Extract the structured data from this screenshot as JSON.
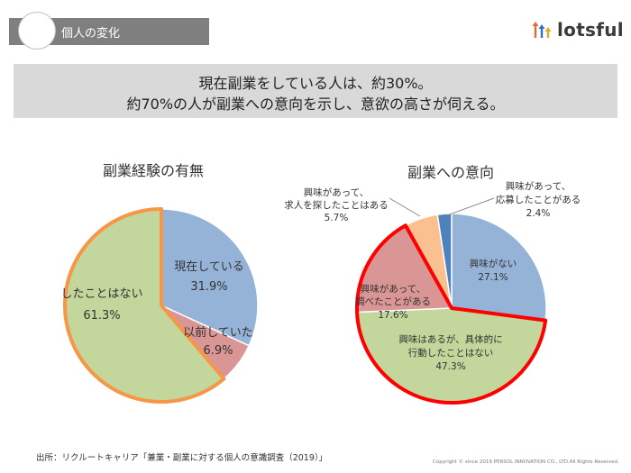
{
  "header": {
    "title": "個人の変化"
  },
  "logo": {
    "text": "lotsful",
    "arrow_colors": [
      "#e86b2a",
      "#2e6fd0",
      "#e8a52a"
    ]
  },
  "banner": {
    "line1": "現在副業をしている人は、約30%。",
    "line2": "約70%の人が副業への意向を示し、意欲の高さが伺える。"
  },
  "chart_data": [
    {
      "type": "pie",
      "title": "副業経験の有無",
      "slices": [
        {
          "label": "現在している",
          "value": 31.9,
          "value_label": "31.9%",
          "color": "#95b3d7"
        },
        {
          "label": "以前していた",
          "value": 6.9,
          "value_label": "6.9%",
          "color": "#da9694"
        },
        {
          "label": "したことはない",
          "value": 61.3,
          "value_label": "61.3%",
          "color": "#c3d69b",
          "highlight": "#f79646"
        }
      ]
    },
    {
      "type": "pie",
      "title": "副業への意向",
      "slices": [
        {
          "label": "興味がない",
          "value": 27.1,
          "value_label": "27.1%",
          "color": "#95b3d7"
        },
        {
          "label": "興味はあるが、具体的に行動したことはない",
          "label_lines": [
            "興味はあるが、具体的に",
            "行動したことはない"
          ],
          "value": 47.3,
          "value_label": "47.3%",
          "color": "#c3d69b"
        },
        {
          "label": "興味があって、調べたことがある",
          "label_lines": [
            "興味があって、",
            "調べたことがある"
          ],
          "value": 17.6,
          "value_label": "17.6%",
          "color": "#da9694"
        },
        {
          "label": "興味があって、求人を探したことはある",
          "label_lines": [
            "興味があって、",
            "求人を探したことはある"
          ],
          "value": 5.7,
          "value_label": "5.7%",
          "color": "#fac090"
        },
        {
          "label": "興味があって、応募したことがある",
          "label_lines": [
            "興味があって、",
            "応募したことがある"
          ],
          "value": 2.4,
          "value_label": "2.4%",
          "color": "#4f81bd"
        }
      ],
      "highlight": "#ff0000"
    }
  ],
  "footer": {
    "source": "出所：リクルートキャリア「兼業・副業に対する個人の意識調査（2019）」",
    "copyright": "Copyright © since 2019 PERSOL INNOVATION CO., LTD.All Rights Reserved."
  }
}
